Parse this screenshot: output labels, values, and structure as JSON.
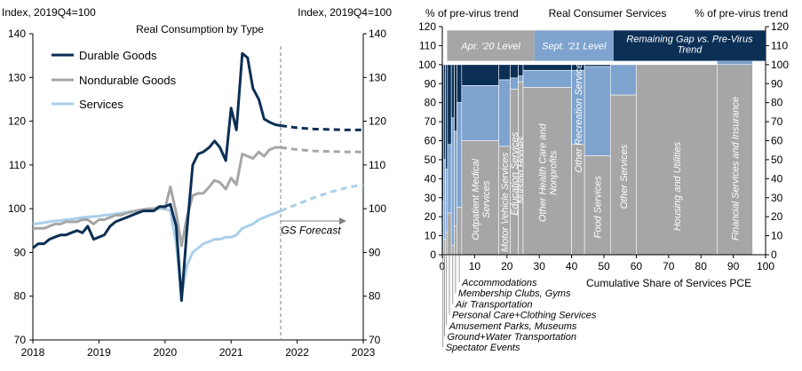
{
  "chart_data": [
    {
      "type": "line",
      "title": "Real Consumption by Type",
      "ylabel_left": "Index, 2019Q4=100",
      "ylabel_right": "Index, 2019Q4=100",
      "ylim": [
        70,
        140
      ],
      "yticks": [
        70,
        80,
        90,
        100,
        110,
        120,
        130,
        140
      ],
      "xlim": [
        2018,
        2023
      ],
      "xticks": [
        "2018",
        "2019",
        "2020",
        "2021",
        "2022",
        "2023"
      ],
      "forecast_start": 2021.75,
      "forecast_label": "GS Forecast",
      "colors": {
        "durable": "#0b2f55",
        "nondurable": "#a6a6a6",
        "services": "#a9cfea"
      },
      "series": [
        {
          "name": "Durable Goods",
          "key": "durable",
          "x": [
            2018.0,
            2018.08,
            2018.17,
            2018.25,
            2018.33,
            2018.42,
            2018.5,
            2018.58,
            2018.67,
            2018.75,
            2018.83,
            2018.92,
            2019.0,
            2019.08,
            2019.17,
            2019.25,
            2019.33,
            2019.42,
            2019.5,
            2019.58,
            2019.67,
            2019.75,
            2019.83,
            2019.92,
            2020.0,
            2020.08,
            2020.17,
            2020.25,
            2020.33,
            2020.42,
            2020.5,
            2020.58,
            2020.67,
            2020.75,
            2020.83,
            2020.92,
            2021.0,
            2021.08,
            2021.17,
            2021.25,
            2021.33,
            2021.42,
            2021.5,
            2021.58,
            2021.67,
            2021.75
          ],
          "values": [
            91,
            92,
            92,
            93,
            93.5,
            94,
            94,
            94.5,
            95,
            94.5,
            96,
            93,
            93.5,
            94,
            96,
            97,
            97.5,
            98,
            98.5,
            99,
            99.5,
            99.5,
            99.5,
            100.5,
            100.5,
            101,
            96,
            79,
            95,
            110,
            112.5,
            113,
            114,
            115.5,
            114,
            111,
            123,
            118,
            135.5,
            134.5,
            127.5,
            125,
            120.5,
            119.8,
            119.2,
            119
          ],
          "forecast_x": [
            2021.75,
            2022.0,
            2022.25,
            2022.5,
            2022.75,
            2023.0
          ],
          "forecast_values": [
            119,
            118.5,
            118.2,
            118.1,
            118,
            118
          ]
        },
        {
          "name": "Nondurable Goods",
          "key": "nondurable",
          "x": [
            2018.0,
            2018.08,
            2018.17,
            2018.25,
            2018.33,
            2018.42,
            2018.5,
            2018.58,
            2018.67,
            2018.75,
            2018.83,
            2018.92,
            2019.0,
            2019.08,
            2019.17,
            2019.25,
            2019.33,
            2019.42,
            2019.5,
            2019.58,
            2019.67,
            2019.75,
            2019.83,
            2019.92,
            2020.0,
            2020.08,
            2020.17,
            2020.25,
            2020.33,
            2020.42,
            2020.5,
            2020.58,
            2020.67,
            2020.75,
            2020.83,
            2020.92,
            2021.0,
            2021.08,
            2021.17,
            2021.25,
            2021.33,
            2021.42,
            2021.5,
            2021.58,
            2021.67,
            2021.75
          ],
          "values": [
            95.5,
            95.5,
            95.5,
            96,
            96.5,
            96.5,
            97,
            97,
            97,
            97.5,
            97.5,
            96.5,
            97.5,
            97.5,
            98,
            98.5,
            98.5,
            99,
            99.3,
            99.6,
            99.8,
            100,
            100,
            100.5,
            100,
            105,
            99,
            91.5,
            98,
            103,
            103.5,
            103.5,
            105,
            106.5,
            106,
            104.5,
            107,
            105.5,
            112.5,
            112,
            111.5,
            113,
            112,
            113.5,
            114,
            114
          ],
          "forecast_x": [
            2021.75,
            2022.0,
            2022.25,
            2022.5,
            2022.75,
            2023.0
          ],
          "forecast_values": [
            114,
            113.5,
            113.2,
            113.1,
            113,
            113
          ]
        },
        {
          "name": "Services",
          "key": "services",
          "x": [
            2018.0,
            2018.08,
            2018.17,
            2018.25,
            2018.33,
            2018.42,
            2018.5,
            2018.58,
            2018.67,
            2018.75,
            2018.83,
            2018.92,
            2019.0,
            2019.08,
            2019.17,
            2019.25,
            2019.33,
            2019.42,
            2019.5,
            2019.58,
            2019.67,
            2019.75,
            2019.83,
            2019.92,
            2020.0,
            2020.08,
            2020.17,
            2020.25,
            2020.33,
            2020.42,
            2020.5,
            2020.58,
            2020.67,
            2020.75,
            2020.83,
            2020.92,
            2021.0,
            2021.08,
            2021.17,
            2021.25,
            2021.33,
            2021.42,
            2021.5,
            2021.58,
            2021.67,
            2021.75
          ],
          "values": [
            96.5,
            96.6,
            96.8,
            97,
            97.2,
            97.3,
            97.5,
            97.6,
            97.8,
            98,
            98.1,
            98.2,
            98.3,
            98.5,
            98.6,
            98.8,
            99,
            99.2,
            99.4,
            99.5,
            99.7,
            99.8,
            99.9,
            100,
            100,
            99.5,
            92,
            80,
            87,
            90,
            91,
            92,
            92.5,
            93,
            93,
            93.5,
            93.5,
            94,
            95.5,
            96,
            96.5,
            97.5,
            98,
            98.5,
            99,
            99.5
          ],
          "forecast_x": [
            2021.75,
            2022.0,
            2022.25,
            2022.5,
            2022.75,
            2023.0
          ],
          "forecast_values": [
            99.5,
            101,
            102.5,
            103.8,
            104.8,
            105.5
          ]
        }
      ]
    },
    {
      "type": "mekko",
      "title": "Real Consumer Services",
      "ylabel_left": "% of pre-virus trend",
      "ylabel_right": "% of pre-virus trend",
      "ylim": [
        0,
        120
      ],
      "yticks": [
        0,
        10,
        20,
        30,
        40,
        50,
        60,
        70,
        80,
        90,
        100,
        110,
        120
      ],
      "xlim": [
        0,
        100
      ],
      "xticks": [
        0,
        10,
        20,
        30,
        40,
        50,
        60,
        70,
        80,
        90,
        100
      ],
      "xlabel": "Cumulative Share of Services PCE",
      "legend": [
        {
          "label": "Apr. '20 Level",
          "color": "#a6a6a6"
        },
        {
          "label": "Sept. '21 Level",
          "color": "#7fa3cf"
        },
        {
          "label": "Remaining Gap vs. Pre-Virus Trend",
          "color": "#0b2f55"
        }
      ],
      "categories": [
        {
          "name": "Spectator Events",
          "share": 0.4,
          "apr20": 2,
          "sep21": 28,
          "inside": ""
        },
        {
          "name": "Ground+Water Transportation",
          "share": 0.6,
          "apr20": 8,
          "sep21": 50,
          "inside": ""
        },
        {
          "name": "Amusement Parks, Museums",
          "share": 0.6,
          "apr20": 12,
          "sep21": 45,
          "inside": ""
        },
        {
          "name": "Personal Care+Clothing Services",
          "share": 1.2,
          "apr20": 22,
          "sep21": 58,
          "inside": ""
        },
        {
          "name": "Air Transportation",
          "share": 0.9,
          "apr20": 5,
          "sep21": 72,
          "inside": ""
        },
        {
          "name": "Membership Clubs, Gyms",
          "share": 0.8,
          "apr20": 15,
          "sep21": 65,
          "inside": ""
        },
        {
          "name": "Accommodations",
          "share": 1.5,
          "apr20": 25,
          "sep21": 80,
          "inside": ""
        },
        {
          "name": "Outpatient Medical Services",
          "share": 11.5,
          "apr20": 60,
          "sep21": 89,
          "inside": "Outpatient Medical Services"
        },
        {
          "name": "Motor Vehicle Services",
          "share": 3.5,
          "apr20": 57,
          "sep21": 92,
          "inside": "Motor Vehicle Services"
        },
        {
          "name": "Education Services",
          "share": 2.5,
          "apr20": 87,
          "sep21": 93,
          "inside": "Education Services"
        },
        {
          "name": "Nursing Homes",
          "share": 1.5,
          "apr20": 91,
          "sep21": 94,
          "inside": "Nursing Homes"
        },
        {
          "name": "Other Health Care and Nonprofits",
          "share": 15.0,
          "apr20": 88,
          "sep21": 97,
          "inside": "Other Health Care and Nonprofits"
        },
        {
          "name": "Other Recreation Services",
          "share": 4.0,
          "apr20": 58,
          "sep21": 97,
          "inside": "Other Recreation Services"
        },
        {
          "name": "Food Services",
          "share": 8.0,
          "apr20": 52,
          "sep21": 99,
          "inside": "Food Services"
        },
        {
          "name": "Other Services",
          "share": 8.0,
          "apr20": 84,
          "sep21": 100,
          "inside": "Other Services"
        },
        {
          "name": "Housing and Utilities",
          "share": 25.0,
          "apr20": 100,
          "sep21": 100,
          "inside": "Housing and Utilities"
        },
        {
          "name": "Financial Services and Insurance",
          "share": 11.0,
          "apr20": 100,
          "sep21": 102,
          "inside": "Financial Services and Insurance"
        }
      ],
      "callouts": [
        "Accommodations",
        "Membership Clubs, Gyms",
        "Air Transportation",
        "Personal Care+Clothing Services",
        "Amusement Parks, Museums",
        "Ground+Water Transportation",
        "Spectator Events"
      ]
    }
  ]
}
